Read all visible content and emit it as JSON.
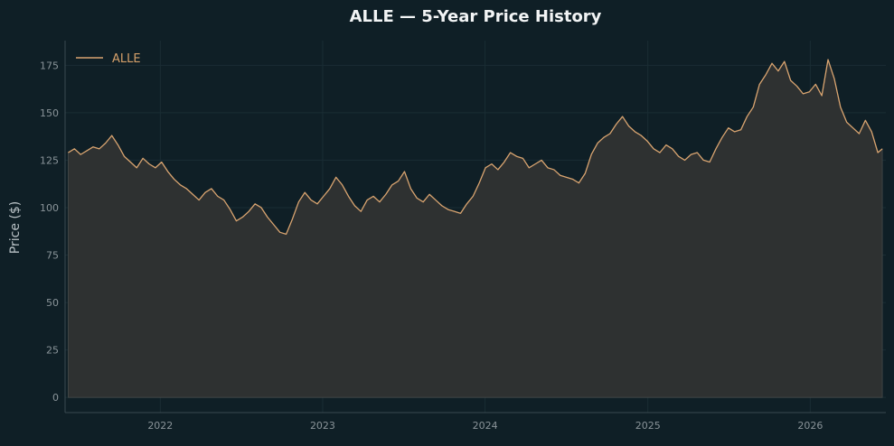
{
  "chart_data": {
    "type": "area",
    "title": "ALLE — 5-Year Price History",
    "xlabel": "",
    "ylabel": "Price ($)",
    "xlim": [
      "2021-06-01",
      "2026-06-20"
    ],
    "ylim": [
      -8,
      188
    ],
    "y_ticks": [
      0,
      25,
      50,
      75,
      100,
      125,
      150,
      175
    ],
    "x_ticks": [
      {
        "label": "2022",
        "date": "2022-01-01"
      },
      {
        "label": "2023",
        "date": "2023-01-01"
      },
      {
        "label": "2024",
        "date": "2024-01-01"
      },
      {
        "label": "2025",
        "date": "2025-01-01"
      },
      {
        "label": "2026",
        "date": "2026-01-01"
      }
    ],
    "grid": true,
    "legend": {
      "placement": "top-left"
    },
    "series": [
      {
        "name": "ALLE",
        "color": "#d9a470",
        "fill_color": "#2e3131",
        "x": [
          "2021-06-08",
          "2021-06-22",
          "2021-07-06",
          "2021-07-20",
          "2021-08-03",
          "2021-08-17",
          "2021-08-31",
          "2021-09-14",
          "2021-09-28",
          "2021-10-12",
          "2021-10-26",
          "2021-11-09",
          "2021-11-23",
          "2021-12-07",
          "2021-12-21",
          "2022-01-04",
          "2022-01-18",
          "2022-02-01",
          "2022-02-15",
          "2022-03-01",
          "2022-03-15",
          "2022-03-29",
          "2022-04-12",
          "2022-04-26",
          "2022-05-10",
          "2022-05-24",
          "2022-06-07",
          "2022-06-21",
          "2022-07-05",
          "2022-07-19",
          "2022-08-02",
          "2022-08-16",
          "2022-08-30",
          "2022-09-13",
          "2022-09-27",
          "2022-10-11",
          "2022-10-25",
          "2022-11-08",
          "2022-11-22",
          "2022-12-06",
          "2022-12-20",
          "2023-01-03",
          "2023-01-17",
          "2023-01-31",
          "2023-02-14",
          "2023-02-28",
          "2023-03-14",
          "2023-03-28",
          "2023-04-11",
          "2023-04-25",
          "2023-05-09",
          "2023-05-23",
          "2023-06-06",
          "2023-06-20",
          "2023-07-04",
          "2023-07-18",
          "2023-08-01",
          "2023-08-15",
          "2023-08-29",
          "2023-09-12",
          "2023-09-26",
          "2023-10-10",
          "2023-10-24",
          "2023-11-07",
          "2023-11-21",
          "2023-12-05",
          "2023-12-19",
          "2024-01-02",
          "2024-01-16",
          "2024-01-30",
          "2024-02-13",
          "2024-02-27",
          "2024-03-12",
          "2024-03-26",
          "2024-04-09",
          "2024-04-23",
          "2024-05-07",
          "2024-05-21",
          "2024-06-04",
          "2024-06-18",
          "2024-07-02",
          "2024-07-16",
          "2024-07-30",
          "2024-08-13",
          "2024-08-27",
          "2024-09-10",
          "2024-09-24",
          "2024-10-08",
          "2024-10-22",
          "2024-11-05",
          "2024-11-19",
          "2024-12-03",
          "2024-12-17",
          "2024-12-31",
          "2025-01-14",
          "2025-01-28",
          "2025-02-11",
          "2025-02-25",
          "2025-03-11",
          "2025-03-25",
          "2025-04-08",
          "2025-04-22",
          "2025-05-06",
          "2025-05-20",
          "2025-06-03",
          "2025-06-17",
          "2025-07-01",
          "2025-07-15",
          "2025-07-29",
          "2025-08-12",
          "2025-08-26",
          "2025-09-09",
          "2025-09-23",
          "2025-10-07",
          "2025-10-21",
          "2025-11-04",
          "2025-11-18",
          "2025-12-02",
          "2025-12-16",
          "2025-12-30",
          "2026-01-13",
          "2026-01-27",
          "2026-02-10",
          "2026-02-24",
          "2026-03-10",
          "2026-03-24",
          "2026-04-07",
          "2026-04-21",
          "2026-05-05",
          "2026-05-19",
          "2026-06-02",
          "2026-06-12"
        ],
        "y": [
          129,
          131,
          128,
          130,
          132,
          131,
          134,
          138,
          133,
          127,
          124,
          121,
          126,
          123,
          121,
          124,
          119,
          115,
          112,
          110,
          107,
          104,
          108,
          110,
          106,
          104,
          99,
          93,
          95,
          98,
          102,
          100,
          95,
          91,
          87,
          86,
          94,
          103,
          108,
          104,
          102,
          106,
          110,
          116,
          112,
          106,
          101,
          98,
          104,
          106,
          103,
          107,
          112,
          114,
          119,
          110,
          105,
          103,
          107,
          104,
          101,
          99,
          98,
          97,
          102,
          106,
          113,
          121,
          123,
          120,
          124,
          129,
          127,
          126,
          121,
          123,
          125,
          121,
          120,
          117,
          116,
          115,
          113,
          118,
          128,
          134,
          137,
          139,
          144,
          148,
          143,
          140,
          138,
          135,
          131,
          129,
          133,
          131,
          127,
          125,
          128,
          129,
          125,
          124,
          131,
          137,
          142,
          140,
          141,
          148,
          153,
          165,
          170,
          176,
          172,
          177,
          167,
          164,
          160,
          161,
          165,
          159,
          178,
          168,
          153,
          145,
          142,
          139,
          146,
          140,
          129,
          131
        ]
      }
    ]
  }
}
